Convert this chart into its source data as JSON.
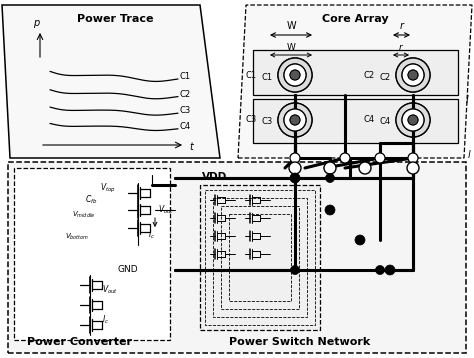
{
  "bg_color": "#ffffff",
  "power_trace_label": "Power Trace",
  "core_array_label": "Core Array",
  "power_converter_label": "Power Converter",
  "power_switch_label": "Power Switch Network",
  "vdd_label": "VDD",
  "gnd_label": "GND",
  "p_label": "p",
  "t_label": "t",
  "w_label": "W",
  "r_label": "r",
  "l_label": "l",
  "curves": [
    "C1",
    "C2",
    "C3",
    "C4"
  ],
  "core_labels": [
    "C1",
    "C2",
    "C3",
    "C4"
  ],
  "line_color": "#000000",
  "thick_lw": 2.2,
  "thin_lw": 0.8,
  "med_lw": 1.2
}
